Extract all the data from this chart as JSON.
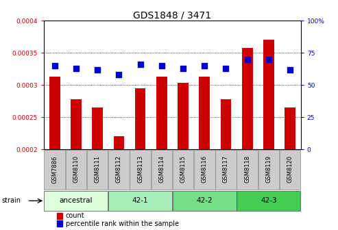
{
  "title": "GDS1848 / 3471",
  "samples": [
    "GSM7886",
    "GSM8110",
    "GSM8111",
    "GSM8112",
    "GSM8113",
    "GSM8114",
    "GSM8115",
    "GSM8116",
    "GSM8117",
    "GSM8118",
    "GSM8119",
    "GSM8120"
  ],
  "counts": [
    0.000313,
    0.000278,
    0.000265,
    0.00022,
    0.000295,
    0.000313,
    0.000303,
    0.000313,
    0.000278,
    0.000358,
    0.00037,
    0.000265
  ],
  "percentiles": [
    65,
    63,
    62,
    58,
    66,
    65,
    63,
    65,
    63,
    70,
    70,
    62
  ],
  "ylim_left": [
    0.0002,
    0.0004
  ],
  "ylim_right": [
    0,
    100
  ],
  "yticks_left": [
    0.0002,
    0.00025,
    0.0003,
    0.00035,
    0.0004
  ],
  "yticks_right": [
    0,
    25,
    50,
    75,
    100
  ],
  "ytick_labels_left": [
    "0.0002",
    "0.00025",
    "0.0003",
    "0.00035",
    "0.0004"
  ],
  "ytick_labels_right": [
    "0",
    "25",
    "50",
    "75",
    "100%"
  ],
  "bar_color": "#cc0000",
  "dot_color": "#0000cc",
  "strain_groups": [
    {
      "label": "ancestral",
      "start": 0,
      "end": 3,
      "color": "#ddffdd"
    },
    {
      "label": "42-1",
      "start": 3,
      "end": 6,
      "color": "#aaeebb"
    },
    {
      "label": "42-2",
      "start": 6,
      "end": 9,
      "color": "#77dd88"
    },
    {
      "label": "42-3",
      "start": 9,
      "end": 12,
      "color": "#44cc55"
    }
  ],
  "strain_label": "strain",
  "legend_count_label": "count",
  "legend_percentile_label": "percentile rank within the sample",
  "bar_bottom": 0.0002,
  "bar_width": 0.5,
  "dot_size": 40,
  "label_cell_color": "#cccccc",
  "fig_width": 4.93,
  "fig_height": 3.36,
  "dpi": 100
}
